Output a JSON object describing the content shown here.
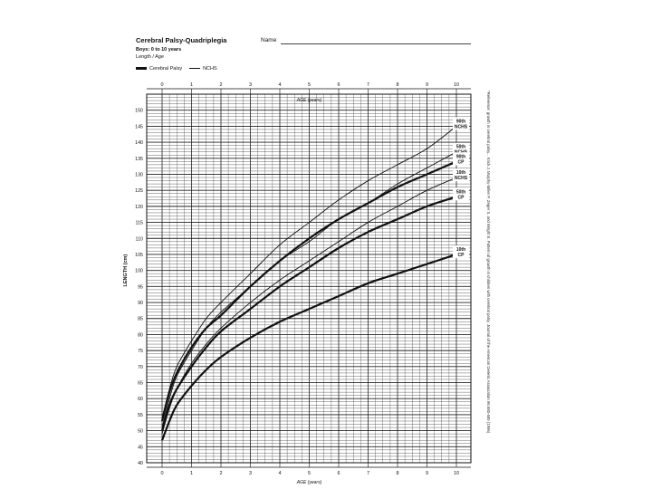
{
  "header": {
    "title": "Cerebral Palsy-Quadriplegia",
    "subtitle": "Boys: 0 to 10 years",
    "measure": "Length / Age",
    "name_label": "Name"
  },
  "legend": {
    "cp_label": "Cerebral Palsy",
    "nchs_label": "NCHS"
  },
  "source_note": "*Reference: growth in cerebral palsy... Krick J, Murphy-Miller P, Zeger S, and Wright E. Pattern of growth in children with cerebral palsy. Journal of the American Dietetic Association 96:680-685 (1996)",
  "chart_data": {
    "type": "line",
    "title": "",
    "xlabel": "AGE (years)",
    "ylabel": "LENGTH (cm)",
    "xlim": [
      0,
      10
    ],
    "ylim": [
      40,
      155
    ],
    "x_ticks": [
      "0",
      "1",
      "2",
      "3",
      "4",
      "5",
      "6",
      "7",
      "8",
      "9",
      "10"
    ],
    "x_ticks_bottom": [
      "0",
      "1",
      "2",
      "3",
      "4",
      "5",
      "6",
      "7",
      "8",
      "9",
      "10"
    ],
    "y_ticks": [
      "40",
      "45",
      "50",
      "55",
      "60",
      "65",
      "70",
      "75",
      "80",
      "85",
      "90",
      "95",
      "100",
      "105",
      "110",
      "115",
      "120",
      "125",
      "130",
      "135",
      "140",
      "145",
      "150"
    ],
    "grid": true,
    "legend_position": "top-left",
    "series": [
      {
        "name": "90th NCHS",
        "style": "thin",
        "x": [
          0,
          0.25,
          0.5,
          1,
          1.5,
          2,
          3,
          4,
          5,
          6,
          7,
          8,
          9,
          10
        ],
        "y": [
          54,
          63,
          70,
          78,
          85,
          90,
          99,
          108,
          115,
          122,
          128,
          133,
          138,
          145
        ]
      },
      {
        "name": "50th NCHS",
        "style": "thin",
        "x": [
          0,
          0.25,
          0.5,
          1,
          1.5,
          2,
          3,
          4,
          5,
          6,
          7,
          8,
          9,
          10
        ],
        "y": [
          51,
          60,
          67,
          75,
          82,
          87,
          95,
          103,
          109,
          116,
          121,
          127,
          132,
          137
        ]
      },
      {
        "name": "90th CP",
        "style": "thick",
        "x": [
          0,
          0.25,
          0.5,
          1,
          1.5,
          2,
          3,
          4,
          5,
          6,
          7,
          8,
          9,
          10
        ],
        "y": [
          53,
          62,
          68,
          76,
          82,
          86,
          95,
          103,
          110,
          116,
          121,
          126,
          130,
          134
        ]
      },
      {
        "name": "10th NCHS",
        "style": "thin",
        "x": [
          0,
          0.25,
          0.5,
          1,
          1.5,
          2,
          3,
          4,
          5,
          6,
          7,
          8,
          9,
          10
        ],
        "y": [
          49,
          57,
          63,
          71,
          77,
          82,
          90,
          97,
          103,
          109,
          115,
          120,
          125,
          129
        ]
      },
      {
        "name": "50th CP",
        "style": "thick",
        "x": [
          0,
          0.25,
          0.5,
          1,
          1.5,
          2,
          3,
          4,
          5,
          6,
          7,
          8,
          9,
          10
        ],
        "y": [
          50,
          58,
          63,
          70,
          76,
          81,
          88,
          95,
          101,
          107,
          112,
          116,
          120,
          123
        ]
      },
      {
        "name": "10th CP",
        "style": "thick",
        "x": [
          0,
          0.25,
          0.5,
          1,
          1.5,
          2,
          3,
          4,
          5,
          6,
          7,
          8,
          9,
          10
        ],
        "y": [
          47,
          53,
          58,
          64,
          69,
          73,
          79,
          84,
          88,
          92,
          96,
          99,
          102,
          105
        ]
      }
    ],
    "curve_labels": [
      {
        "series": "90th NCHS",
        "lines": [
          "90th",
          "NCHS"
        ]
      },
      {
        "series": "50th NCHS",
        "lines": [
          "50th",
          "NCHS"
        ]
      },
      {
        "series": "90th CP",
        "lines": [
          "90th",
          "CP"
        ]
      },
      {
        "series": "10th NCHS",
        "lines": [
          "10th",
          "NCHS"
        ]
      },
      {
        "series": "50th CP",
        "lines": [
          "50th",
          "CP"
        ]
      },
      {
        "series": "10th CP",
        "lines": [
          "10th",
          "CP"
        ]
      }
    ]
  }
}
